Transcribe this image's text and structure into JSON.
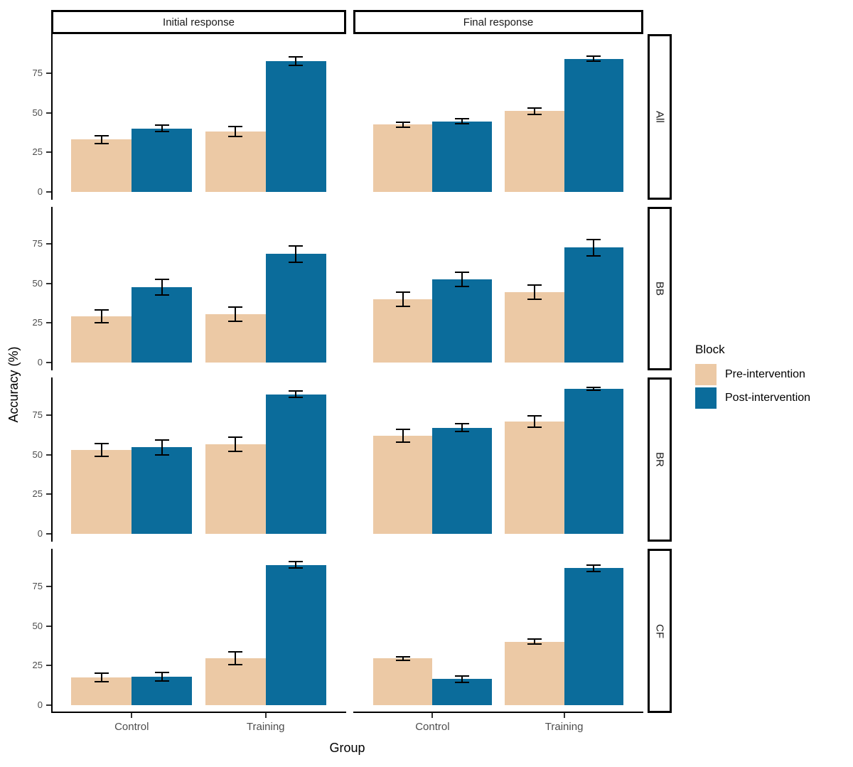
{
  "chart_data": {
    "type": "bar",
    "title": "",
    "xlabel": "Group",
    "ylabel": "Accuracy (%)",
    "x_categories": [
      "Control",
      "Training"
    ],
    "col_facets": [
      "Initial response",
      "Final response"
    ],
    "row_facets": [
      "All",
      "BB",
      "BR",
      "CF"
    ],
    "y_ticks": [
      0,
      25,
      50,
      75
    ],
    "ylim": [
      -5,
      99.5
    ],
    "grid": "off",
    "legend": {
      "title": "Block",
      "position": "right",
      "entries": [
        {
          "label": "Pre-intervention",
          "color": "#ECC9A5"
        },
        {
          "label": "Post-intervention",
          "color": "#0B6C9B"
        }
      ]
    },
    "panels": [
      {
        "row": "All",
        "col": "Initial response",
        "bars": [
          {
            "group": "Control",
            "block": "Pre-intervention",
            "value": 33,
            "err": 3
          },
          {
            "group": "Control",
            "block": "Post-intervention",
            "value": 40,
            "err": 2.5
          },
          {
            "group": "Training",
            "block": "Pre-intervention",
            "value": 38,
            "err": 3.5
          },
          {
            "group": "Training",
            "block": "Post-intervention",
            "value": 82.5,
            "err": 3
          }
        ]
      },
      {
        "row": "All",
        "col": "Final response",
        "bars": [
          {
            "group": "Control",
            "block": "Pre-intervention",
            "value": 42.5,
            "err": 2
          },
          {
            "group": "Control",
            "block": "Post-intervention",
            "value": 44.5,
            "err": 2
          },
          {
            "group": "Training",
            "block": "Pre-intervention",
            "value": 51,
            "err": 2.5
          },
          {
            "group": "Training",
            "block": "Post-intervention",
            "value": 84,
            "err": 2
          }
        ]
      },
      {
        "row": "BB",
        "col": "Initial response",
        "bars": [
          {
            "group": "Control",
            "block": "Pre-intervention",
            "value": 29,
            "err": 4.5
          },
          {
            "group": "Control",
            "block": "Post-intervention",
            "value": 47.5,
            "err": 5.5
          },
          {
            "group": "Training",
            "block": "Pre-intervention",
            "value": 30.5,
            "err": 5
          },
          {
            "group": "Training",
            "block": "Post-intervention",
            "value": 68.5,
            "err": 5.5
          }
        ]
      },
      {
        "row": "BB",
        "col": "Final response",
        "bars": [
          {
            "group": "Control",
            "block": "Pre-intervention",
            "value": 40,
            "err": 5
          },
          {
            "group": "Control",
            "block": "Post-intervention",
            "value": 52.5,
            "err": 5
          },
          {
            "group": "Training",
            "block": "Pre-intervention",
            "value": 44.5,
            "err": 5
          },
          {
            "group": "Training",
            "block": "Post-intervention",
            "value": 72.5,
            "err": 5.5
          }
        ]
      },
      {
        "row": "BR",
        "col": "Initial response",
        "bars": [
          {
            "group": "Control",
            "block": "Pre-intervention",
            "value": 53,
            "err": 4.5
          },
          {
            "group": "Control",
            "block": "Post-intervention",
            "value": 54.5,
            "err": 5
          },
          {
            "group": "Training",
            "block": "Pre-intervention",
            "value": 56.5,
            "err": 5
          },
          {
            "group": "Training",
            "block": "Post-intervention",
            "value": 88,
            "err": 2.5
          }
        ]
      },
      {
        "row": "BR",
        "col": "Final response",
        "bars": [
          {
            "group": "Control",
            "block": "Pre-intervention",
            "value": 62,
            "err": 4.5
          },
          {
            "group": "Control",
            "block": "Post-intervention",
            "value": 67,
            "err": 3
          },
          {
            "group": "Training",
            "block": "Pre-intervention",
            "value": 71,
            "err": 4
          },
          {
            "group": "Training",
            "block": "Post-intervention",
            "value": 91.5,
            "err": 1.5
          }
        ]
      },
      {
        "row": "CF",
        "col": "Initial response",
        "bars": [
          {
            "group": "Control",
            "block": "Pre-intervention",
            "value": 17.5,
            "err": 3
          },
          {
            "group": "Control",
            "block": "Post-intervention",
            "value": 18,
            "err": 3
          },
          {
            "group": "Training",
            "block": "Pre-intervention",
            "value": 29.5,
            "err": 4.5
          },
          {
            "group": "Training",
            "block": "Post-intervention",
            "value": 88.5,
            "err": 2.5
          }
        ]
      },
      {
        "row": "CF",
        "col": "Final response",
        "bars": [
          {
            "group": "Control",
            "block": "Pre-intervention",
            "value": 29.5,
            "err": 1.5
          },
          {
            "group": "Control",
            "block": "Post-intervention",
            "value": 16.5,
            "err": 2.5
          },
          {
            "group": "Training",
            "block": "Pre-intervention",
            "value": 40,
            "err": 2
          },
          {
            "group": "Training",
            "block": "Post-intervention",
            "value": 86.5,
            "err": 2.5
          }
        ]
      }
    ]
  }
}
